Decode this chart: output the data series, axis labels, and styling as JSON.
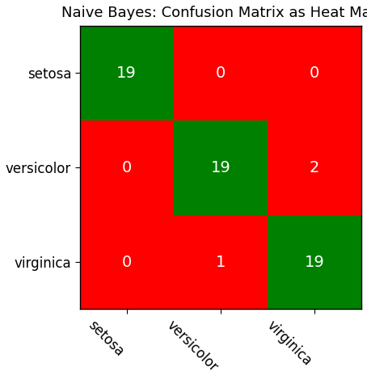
{
  "title": "Naive Bayes: Confusion Matrix as Heat Map",
  "matrix": [
    [
      19,
      0,
      0
    ],
    [
      0,
      19,
      2
    ],
    [
      0,
      1,
      19
    ]
  ],
  "classes": [
    "setosa",
    "versicolor",
    "virginica"
  ],
  "green_color": "#008000",
  "red_color": "#ff0000",
  "text_color": "#ffffff",
  "title_fontsize": 13,
  "label_fontsize": 12,
  "value_fontsize": 14,
  "xlabel_rotation": -45,
  "figsize": [
    4.54,
    4.7
  ],
  "dpi": 100
}
